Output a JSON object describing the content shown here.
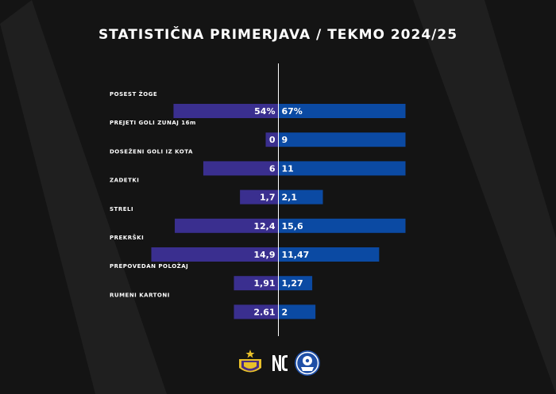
{
  "title": "STATISTIČNA PRIMERJAVA / TEKMO 2024/25",
  "colors": {
    "background": "#141414",
    "stripe": "#1f1f1f",
    "left_bar": "#3a2f8f",
    "right_bar": "#0b4aa3",
    "divider": "#ffffff",
    "maribor_gold": "#e8c02a",
    "maribor_purple": "#4b2e83",
    "right_crest_blue": "#1f4fa6"
  },
  "icons": {
    "left_crest": "maribor-crest-icon",
    "brand": "brand-logo-icon",
    "right_crest": "opponent-crest-icon"
  },
  "chart_data": {
    "type": "bar",
    "orientation": "horizontal-diverging",
    "title": "STATISTIČNA PRIMERJAVA / TEKMO 2024/25",
    "categories": [
      "POSEST ŽOGE",
      "PREJETI GOLI ZUNAJ 16m",
      "DOSEŽENI GOLI IZ KOTA",
      "ZADETKI",
      "STRELI",
      "PREKRŠKI",
      "PREPOVEDAN POLOŽAJ",
      "RUMENI KARTONI"
    ],
    "series": [
      {
        "values": [
          54,
          0,
          6,
          1.7,
          12.4,
          14.9,
          1.91,
          2.61
        ],
        "labels": [
          "54%",
          "0",
          "6",
          "1,7",
          "12,4",
          "14,9",
          "1,91",
          "2.61"
        ]
      },
      {
        "values": [
          67,
          9,
          11,
          2.1,
          15.6,
          11.47,
          1.27,
          2
        ],
        "labels": [
          "67%",
          "9",
          "11",
          "2,1",
          "15,6",
          "11,47",
          "1,27",
          "2"
        ]
      }
    ],
    "grid": false,
    "legend": "none"
  }
}
